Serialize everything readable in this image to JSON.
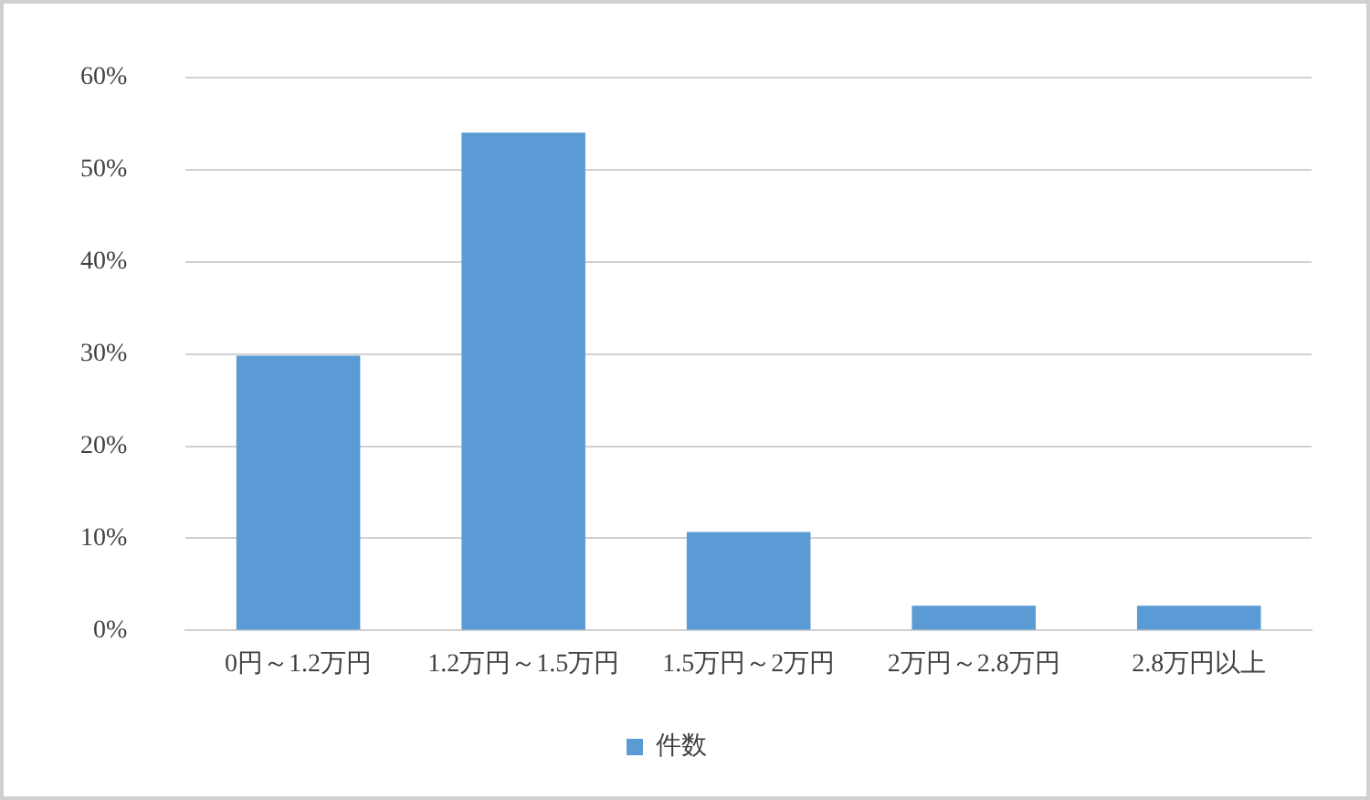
{
  "chart_data": {
    "type": "bar",
    "categories": [
      "0円～1.2万円",
      "1.2万円～1.5万円",
      "1.5万円～2万円",
      "2万円～2.8万円",
      "2.8万円以上"
    ],
    "series": [
      {
        "name": "件数",
        "color": "#5b9bd5",
        "values": [
          29.8,
          54.0,
          10.7,
          2.7,
          2.7
        ]
      }
    ],
    "ylim": [
      0,
      60
    ],
    "yticks": [
      {
        "value": 0,
        "label": "0%"
      },
      {
        "value": 10,
        "label": "10%"
      },
      {
        "value": 20,
        "label": "20%"
      },
      {
        "value": 30,
        "label": "30%"
      },
      {
        "value": 40,
        "label": "40%"
      },
      {
        "value": 50,
        "label": "50%"
      },
      {
        "value": 60,
        "label": "60%"
      }
    ],
    "grid": "y",
    "legend": "bottom"
  }
}
